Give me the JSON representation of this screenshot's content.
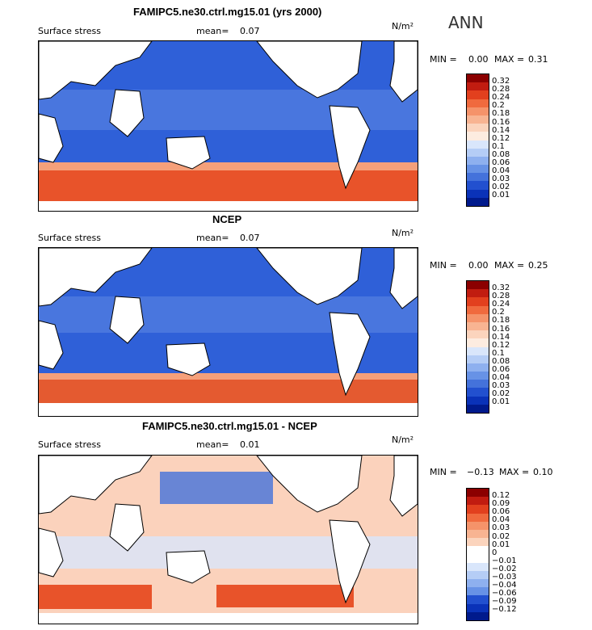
{
  "header": {
    "season": "ANN"
  },
  "panels": [
    {
      "title": "FAMIPC5.ne30.ctrl.mg15.01 (yrs 2000)",
      "field_label": "Surface stress",
      "mean_label": "mean=",
      "mean_value": "0.07",
      "units": "N/m²",
      "min_max": {
        "min_label": "MIN =",
        "min": "0.00",
        "max_label": "MAX =",
        "max": "0.31"
      },
      "colorbar": {
        "levels": [
          "0.32",
          "0.28",
          "0.24",
          "0.2",
          "0.18",
          "0.16",
          "0.14",
          "0.12",
          "0.1",
          "0.08",
          "0.06",
          "0.04",
          "0.03",
          "0.02",
          "0.01"
        ],
        "colors": [
          "#8b0000",
          "#c11c10",
          "#e2401e",
          "#f06a3e",
          "#f5936a",
          "#f8b492",
          "#fbd4bd",
          "#fdece0",
          "#d9e6fb",
          "#b5cdf6",
          "#8eb0ef",
          "#6792e6",
          "#4472db",
          "#2250cf",
          "#0a32b8",
          "#001a8c"
        ]
      },
      "map_colors": {
        "ocean": "#2f60d8",
        "land": "#ffffff",
        "southern_band": "#e8532a"
      }
    },
    {
      "title": "NCEP",
      "field_label": "Surface stress",
      "mean_label": "mean=",
      "mean_value": "0.07",
      "units": "N/m²",
      "min_max": {
        "min_label": "MIN =",
        "min": "0.00",
        "max_label": "MAX =",
        "max": "0.25"
      },
      "colorbar": {
        "levels": [
          "0.32",
          "0.28",
          "0.24",
          "0.2",
          "0.18",
          "0.16",
          "0.14",
          "0.12",
          "0.1",
          "0.08",
          "0.06",
          "0.04",
          "0.03",
          "0.02",
          "0.01"
        ],
        "colors": [
          "#8b0000",
          "#c11c10",
          "#e2401e",
          "#f06a3e",
          "#f5936a",
          "#f8b492",
          "#fbd4bd",
          "#fdece0",
          "#d9e6fb",
          "#b5cdf6",
          "#8eb0ef",
          "#6792e6",
          "#4472db",
          "#2250cf",
          "#0a32b8",
          "#001a8c"
        ]
      },
      "map_colors": {
        "ocean": "#2f60d8",
        "land": "#ffffff",
        "southern_band": "#e45a30"
      }
    },
    {
      "title": "FAMIPC5.ne30.ctrl.mg15.01 - NCEP",
      "field_label": "Surface stress",
      "mean_label": "mean=",
      "mean_value": "0.01",
      "units": "N/m²",
      "min_max": {
        "min_label": "MIN =",
        "min": "−0.13",
        "max_label": "MAX =",
        "max": "0.10"
      },
      "colorbar": {
        "levels": [
          "0.12",
          "0.09",
          "0.06",
          "0.04",
          "0.03",
          "0.02",
          "0.01",
          "0",
          "−0.01",
          "−0.02",
          "−0.03",
          "−0.04",
          "−0.06",
          "−0.09",
          "−0.12"
        ],
        "colors": [
          "#8b0000",
          "#c11c10",
          "#e2401e",
          "#f06a3e",
          "#f5936a",
          "#f8b492",
          "#fbd4bd",
          "#ffffff",
          "#ffffff",
          "#d9e6fb",
          "#b5cdf6",
          "#8eb0ef",
          "#6792e6",
          "#2250cf",
          "#0a32b8",
          "#001a8c"
        ]
      },
      "map_colors": {
        "ocean": "#fbd2bc",
        "land": "#ffffff",
        "southern_band": "#e8532a"
      }
    }
  ]
}
